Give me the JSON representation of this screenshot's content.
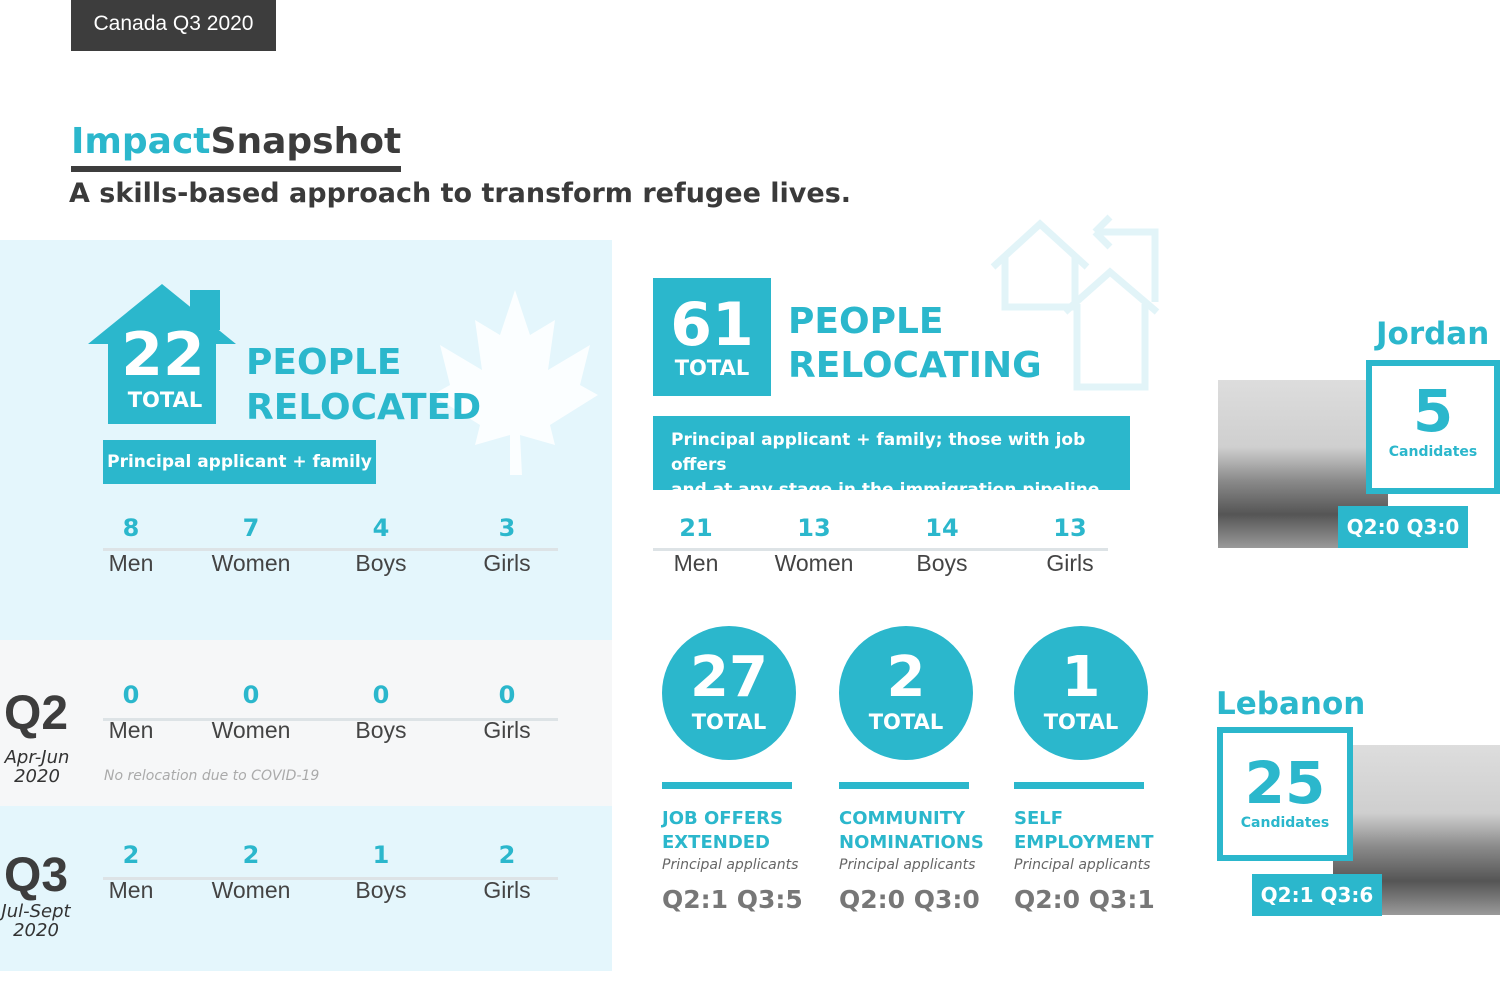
{
  "header": {
    "tag": "Canada Q3 2020",
    "title_a": "Impact",
    "title_b": "Snapshot",
    "subtitle": "A skills-based approach to transform refugee lives."
  },
  "relocated": {
    "number": "22",
    "total": "TOTAL",
    "heading1": "PEOPLE",
    "heading2": "RELOCATED",
    "chip": "Principal applicant + family",
    "stats": [
      {
        "value": "8",
        "label": "Men"
      },
      {
        "value": "7",
        "label": "Women"
      },
      {
        "value": "4",
        "label": "Boys"
      },
      {
        "value": "3",
        "label": "Girls"
      }
    ]
  },
  "q2": {
    "label": "Q2",
    "period": "Apr-Jun",
    "year": "2020",
    "note": "No relocation due to COVID-19",
    "stats": [
      {
        "value": "0",
        "label": "Men"
      },
      {
        "value": "0",
        "label": "Women"
      },
      {
        "value": "0",
        "label": "Boys"
      },
      {
        "value": "0",
        "label": "Girls"
      }
    ]
  },
  "q3": {
    "label": "Q3",
    "period": "Jul-Sept",
    "year": "2020",
    "stats": [
      {
        "value": "2",
        "label": "Men"
      },
      {
        "value": "2",
        "label": "Women"
      },
      {
        "value": "1",
        "label": "Boys"
      },
      {
        "value": "2",
        "label": "Girls"
      }
    ]
  },
  "relocating": {
    "number": "61",
    "total": "TOTAL",
    "heading1": "PEOPLE",
    "heading2": "RELOCATING",
    "chip_line1": "Principal applicant + family; those with job offers",
    "chip_line2": "and at any stage in the immigration pipeline",
    "stats": [
      {
        "value": "21",
        "label": "Men"
      },
      {
        "value": "13",
        "label": "Women"
      },
      {
        "value": "14",
        "label": "Boys"
      },
      {
        "value": "13",
        "label": "Girls"
      }
    ]
  },
  "pathways": [
    {
      "value": "27",
      "total": "TOTAL",
      "title1": "JOB OFFERS",
      "title2": "EXTENDED",
      "sub": "Principal applicants",
      "quarters": "Q2:1 Q3:5"
    },
    {
      "value": "2",
      "total": "TOTAL",
      "title1": "COMMUNITY",
      "title2": "NOMINATIONS",
      "sub": "Principal applicants",
      "quarters": "Q2:0 Q3:0"
    },
    {
      "value": "1",
      "total": "TOTAL",
      "title1": "SELF",
      "title2": "EMPLOYMENT",
      "sub": "Principal applicants",
      "quarters": "Q2:0 Q3:1"
    }
  ],
  "countries": [
    {
      "name": "Jordan",
      "value": "5",
      "unit": "Candidates",
      "quarters": "Q2:0 Q3:0"
    },
    {
      "name": "Lebanon",
      "value": "25",
      "unit": "Candidates",
      "quarters": "Q2:1 Q3:6"
    }
  ],
  "colors": {
    "accent": "#2bb7cc",
    "panel": "#e4f6fc",
    "dark": "#3d3d3d"
  }
}
